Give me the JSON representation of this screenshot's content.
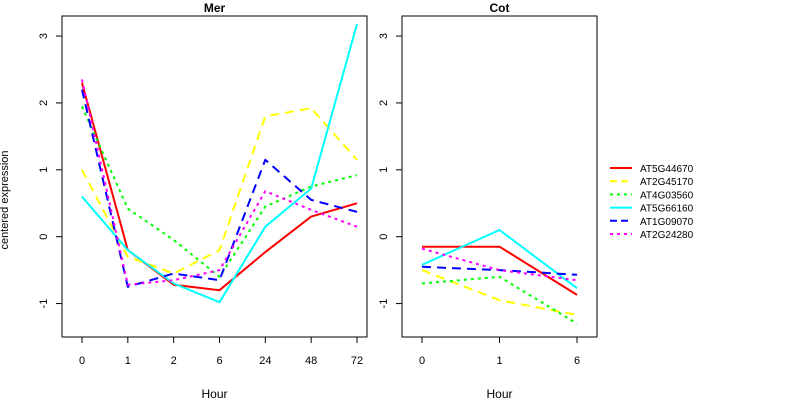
{
  "figure": {
    "ylabel": "centered expression"
  },
  "chart_data": [
    {
      "type": "line",
      "title": "Mer",
      "xlabel": "Hour",
      "ylabel": "centered expression",
      "categories": [
        "0",
        "1",
        "2",
        "6",
        "24",
        "48",
        "72"
      ],
      "ylim": [
        -1.5,
        3.3
      ],
      "yticks": [
        -1,
        0,
        1,
        2,
        3
      ],
      "grid": false,
      "series": [
        {
          "name": "AT5G44670",
          "color": "#FF0000",
          "dash": "solid",
          "values": [
            2.3,
            -0.2,
            -0.72,
            -0.8,
            -0.23,
            0.3,
            0.5
          ]
        },
        {
          "name": "AT2G45170",
          "color": "#FFFF00",
          "dash": "long-dash",
          "values": [
            1.0,
            -0.3,
            -0.55,
            -0.2,
            1.8,
            1.92,
            1.15
          ]
        },
        {
          "name": "AT4G03560",
          "color": "#00FF00",
          "dash": "dotted",
          "values": [
            1.95,
            0.42,
            -0.05,
            -0.6,
            0.45,
            0.75,
            0.92
          ]
        },
        {
          "name": "AT5G66160",
          "color": "#00FFFF",
          "dash": "solid",
          "values": [
            0.6,
            -0.2,
            -0.7,
            -0.98,
            0.15,
            0.72,
            3.18
          ]
        },
        {
          "name": "AT1G09070",
          "color": "#0000FF",
          "dash": "long-dash",
          "values": [
            2.2,
            -0.75,
            -0.55,
            -0.65,
            1.15,
            0.55,
            0.37
          ]
        },
        {
          "name": "AT2G24280",
          "color": "#FF00FF",
          "dash": "dotted",
          "values": [
            2.35,
            -0.72,
            -0.65,
            -0.5,
            0.68,
            0.4,
            0.15
          ]
        }
      ]
    },
    {
      "type": "line",
      "title": "Cot",
      "xlabel": "Hour",
      "ylabel": "",
      "categories": [
        "0",
        "1",
        "6"
      ],
      "ylim": [
        -1.5,
        3.3
      ],
      "yticks": [
        -1,
        0,
        1,
        2,
        3
      ],
      "grid": false,
      "series": [
        {
          "name": "AT5G44670",
          "color": "#FF0000",
          "dash": "solid",
          "values": [
            -0.15,
            -0.15,
            -0.87
          ]
        },
        {
          "name": "AT2G45170",
          "color": "#FFFF00",
          "dash": "long-dash",
          "values": [
            -0.5,
            -0.95,
            -1.17
          ]
        },
        {
          "name": "AT4G03560",
          "color": "#00FF00",
          "dash": "dotted",
          "values": [
            -0.7,
            -0.6,
            -1.3
          ]
        },
        {
          "name": "AT5G66160",
          "color": "#00FFFF",
          "dash": "solid",
          "values": [
            -0.42,
            0.1,
            -0.77
          ]
        },
        {
          "name": "AT1G09070",
          "color": "#0000FF",
          "dash": "long-dash",
          "values": [
            -0.45,
            -0.5,
            -0.57
          ]
        },
        {
          "name": "AT2G24280",
          "color": "#FF00FF",
          "dash": "dotted",
          "values": [
            -0.18,
            -0.5,
            -0.65
          ]
        }
      ]
    }
  ],
  "legend": {
    "placement": "right",
    "entries": [
      {
        "label": "AT5G44670",
        "color": "#FF0000",
        "dash": "solid"
      },
      {
        "label": "AT2G45170",
        "color": "#FFFF00",
        "dash": "long-dash"
      },
      {
        "label": "AT4G03560",
        "color": "#00FF00",
        "dash": "dotted"
      },
      {
        "label": "AT5G66160",
        "color": "#00FFFF",
        "dash": "solid"
      },
      {
        "label": "AT1G09070",
        "color": "#0000FF",
        "dash": "long-dash"
      },
      {
        "label": "AT2G24280",
        "color": "#FF00FF",
        "dash": "dotted"
      }
    ]
  }
}
